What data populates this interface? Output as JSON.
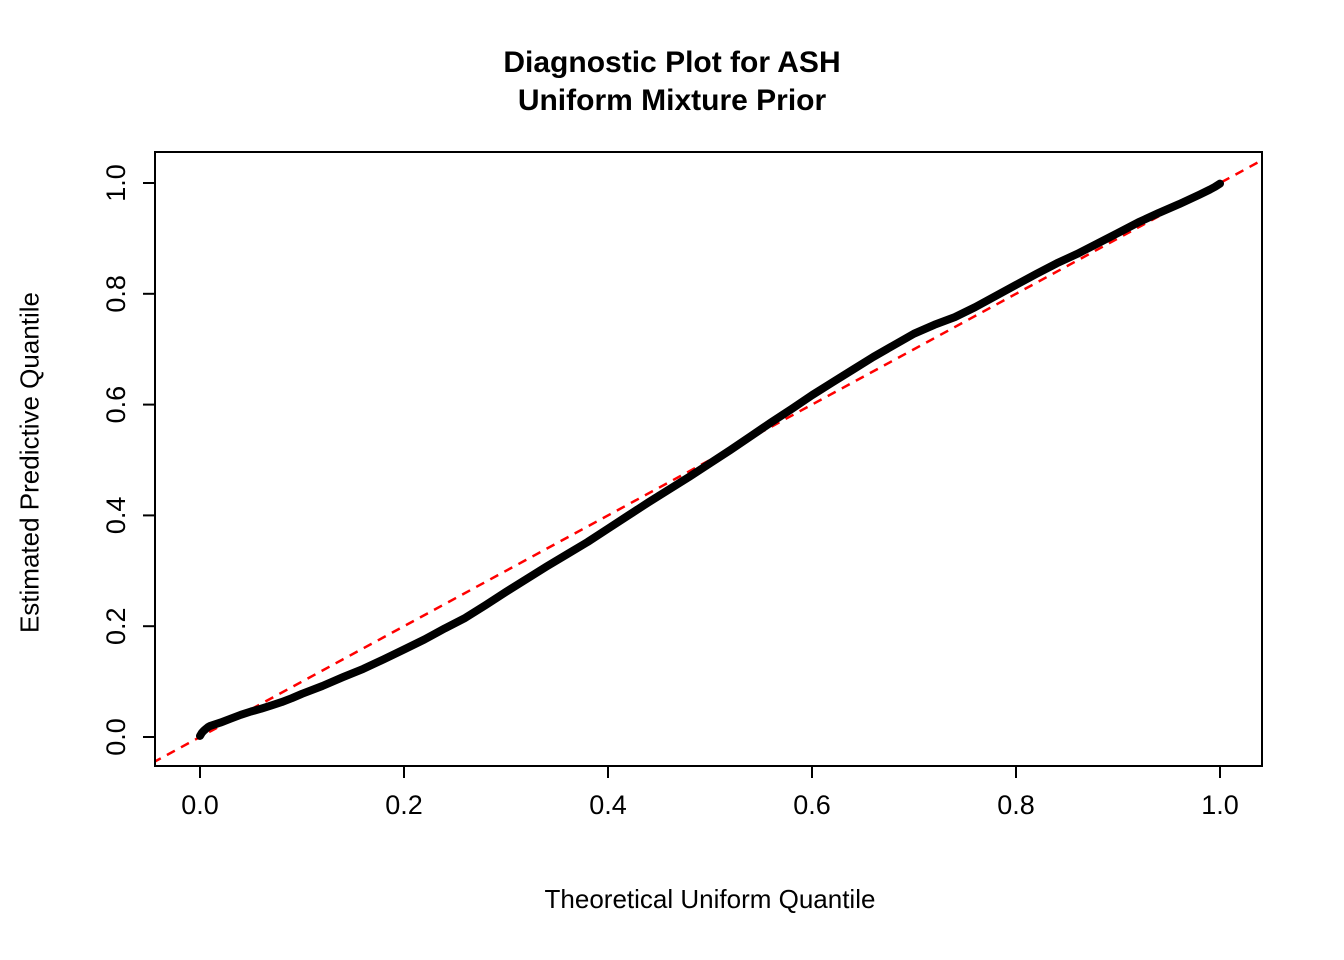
{
  "title": {
    "line1": "Diagnostic Plot for ASH",
    "line2": "Uniform Mixture Prior"
  },
  "chart_data": {
    "type": "scatter",
    "title": "Diagnostic Plot for ASH\nUniform Mixture Prior",
    "xlabel": "Theoretical Uniform Quantile",
    "ylabel": "Estimated Predictive Quantile",
    "xlim": [
      -0.045,
      1.043
    ],
    "ylim": [
      -0.052,
      1.05
    ],
    "grid": false,
    "legend": "none",
    "xticks": [
      0.0,
      0.2,
      0.4,
      0.6,
      0.8,
      1.0
    ],
    "yticks": [
      0.0,
      0.2,
      0.4,
      0.6,
      0.8,
      1.0
    ],
    "xtick_labels": [
      "0.0",
      "0.2",
      "0.4",
      "0.6",
      "0.8",
      "1.0"
    ],
    "ytick_labels": [
      "0.0",
      "0.2",
      "0.4",
      "0.6",
      "0.8",
      "1.0"
    ],
    "series": [
      {
        "name": "estimated-predictive-quantiles",
        "color": "#000000",
        "style": "thick-points",
        "points": [
          [
            0.0,
            0.002
          ],
          [
            0.002,
            0.008
          ],
          [
            0.004,
            0.012
          ],
          [
            0.006,
            0.015
          ],
          [
            0.008,
            0.018
          ],
          [
            0.01,
            0.02
          ],
          [
            0.02,
            0.026
          ],
          [
            0.03,
            0.033
          ],
          [
            0.04,
            0.04
          ],
          [
            0.05,
            0.046
          ],
          [
            0.06,
            0.051
          ],
          [
            0.07,
            0.057
          ],
          [
            0.08,
            0.063
          ],
          [
            0.09,
            0.07
          ],
          [
            0.1,
            0.078
          ],
          [
            0.12,
            0.092
          ],
          [
            0.14,
            0.108
          ],
          [
            0.16,
            0.123
          ],
          [
            0.18,
            0.14
          ],
          [
            0.2,
            0.158
          ],
          [
            0.22,
            0.176
          ],
          [
            0.24,
            0.196
          ],
          [
            0.26,
            0.215
          ],
          [
            0.28,
            0.238
          ],
          [
            0.3,
            0.262
          ],
          [
            0.32,
            0.285
          ],
          [
            0.34,
            0.308
          ],
          [
            0.36,
            0.33
          ],
          [
            0.38,
            0.352
          ],
          [
            0.4,
            0.376
          ],
          [
            0.42,
            0.4
          ],
          [
            0.44,
            0.424
          ],
          [
            0.46,
            0.447
          ],
          [
            0.48,
            0.47
          ],
          [
            0.5,
            0.494
          ],
          [
            0.52,
            0.518
          ],
          [
            0.54,
            0.543
          ],
          [
            0.56,
            0.568
          ],
          [
            0.58,
            0.592
          ],
          [
            0.6,
            0.617
          ],
          [
            0.62,
            0.64
          ],
          [
            0.64,
            0.663
          ],
          [
            0.66,
            0.686
          ],
          [
            0.68,
            0.707
          ],
          [
            0.7,
            0.728
          ],
          [
            0.72,
            0.744
          ],
          [
            0.74,
            0.758
          ],
          [
            0.76,
            0.776
          ],
          [
            0.78,
            0.796
          ],
          [
            0.8,
            0.816
          ],
          [
            0.82,
            0.836
          ],
          [
            0.84,
            0.855
          ],
          [
            0.86,
            0.872
          ],
          [
            0.88,
            0.891
          ],
          [
            0.9,
            0.91
          ],
          [
            0.92,
            0.929
          ],
          [
            0.94,
            0.946
          ],
          [
            0.96,
            0.962
          ],
          [
            0.98,
            0.979
          ],
          [
            0.99,
            0.988
          ],
          [
            0.995,
            0.993
          ],
          [
            1.0,
            0.999
          ]
        ]
      },
      {
        "name": "identity-reference-line",
        "color": "#FF0000",
        "style": "dashed",
        "points": [
          [
            -0.06,
            -0.06
          ],
          [
            1.06,
            1.06
          ]
        ]
      }
    ]
  }
}
